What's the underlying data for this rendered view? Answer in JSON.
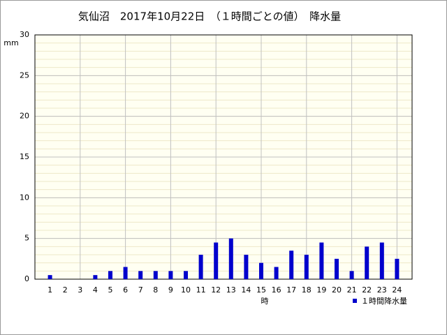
{
  "chart_data": {
    "type": "bar",
    "title": "気仙沼　2017年10月22日　（１時間ごとの値）　降水量",
    "y_unit": "mm",
    "x_label": "時",
    "x": [
      1,
      2,
      3,
      4,
      5,
      6,
      7,
      8,
      9,
      10,
      11,
      12,
      13,
      14,
      15,
      16,
      17,
      18,
      19,
      20,
      21,
      22,
      23,
      24
    ],
    "xlim": [
      0,
      25
    ],
    "x_grid_lines": [
      3,
      6,
      9,
      12,
      15,
      18,
      21,
      24
    ],
    "series": [
      {
        "name": "１時間降水量",
        "color": "#0000cc",
        "values": [
          0.5,
          0,
          0,
          0.5,
          1,
          1.5,
          1,
          1,
          1,
          1,
          3,
          4.5,
          5,
          3,
          2,
          1.5,
          3.5,
          3,
          4.5,
          2.5,
          1,
          4,
          4.5,
          2.5
        ]
      }
    ],
    "ylim": [
      0,
      30
    ],
    "yticks": [
      0,
      5,
      10,
      15,
      20,
      25,
      30
    ],
    "minor_grid_step": 1,
    "grid": true,
    "legend": "bottom-right"
  }
}
